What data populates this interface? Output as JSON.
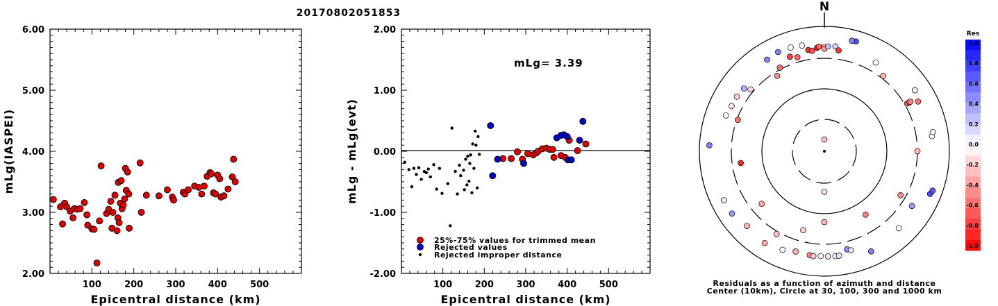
{
  "chart_data": [
    {
      "type": "scatter",
      "title": "20170802051853",
      "xlabel": "Epicentral distance (km)",
      "ylabel": "mLg(IASPEI)",
      "xlim": [
        0,
        600
      ],
      "ylim": [
        2.0,
        6.0
      ],
      "xticks": [
        "100",
        "200",
        "300",
        "400",
        "500"
      ],
      "yticks": [
        "2.00",
        "3.00",
        "4.00",
        "5.00",
        "6.00"
      ],
      "series": [
        {
          "color": "#dd0000",
          "points": [
            [
              8,
              3.21
            ],
            [
              25,
              3.09
            ],
            [
              30,
              2.81
            ],
            [
              35,
              3.15
            ],
            [
              40,
              3.09
            ],
            [
              48,
              3.02
            ],
            [
              55,
              2.91
            ],
            [
              58,
              3.06
            ],
            [
              65,
              3.05
            ],
            [
              72,
              3.06
            ],
            [
              82,
              3.16
            ],
            [
              88,
              2.96
            ],
            [
              90,
              2.79
            ],
            [
              100,
              2.73
            ],
            [
              105,
              2.72
            ],
            [
              112,
              2.17
            ],
            [
              118,
              2.86
            ],
            [
              122,
              3.76
            ],
            [
              135,
              2.98
            ],
            [
              140,
              3.05
            ],
            [
              145,
              3.18
            ],
            [
              148,
              2.74
            ],
            [
              150,
              3.0
            ],
            [
              155,
              3.28
            ],
            [
              160,
              2.7
            ],
            [
              162,
              2.91
            ],
            [
              163,
              3.49
            ],
            [
              165,
              2.83
            ],
            [
              168,
              3.15
            ],
            [
              170,
              3.52
            ],
            [
              172,
              3.06
            ],
            [
              175,
              3.12
            ],
            [
              178,
              3.22
            ],
            [
              180,
              3.72
            ],
            [
              182,
              3.36
            ],
            [
              185,
              3.66
            ],
            [
              188,
              3.3
            ],
            [
              189,
              2.74
            ],
            [
              215,
              3.81
            ],
            [
              218,
              3.0
            ],
            [
              230,
              3.28
            ],
            [
              260,
              3.27
            ],
            [
              280,
              3.37
            ],
            [
              292,
              3.25
            ],
            [
              295,
              3.2
            ],
            [
              318,
              3.33
            ],
            [
              322,
              3.3
            ],
            [
              330,
              3.37
            ],
            [
              345,
              3.43
            ],
            [
              355,
              3.41
            ],
            [
              362,
              3.3
            ],
            [
              368,
              3.43
            ],
            [
              375,
              3.59
            ],
            [
              382,
              3.65
            ],
            [
              385,
              3.63
            ],
            [
              390,
              3.32
            ],
            [
              395,
              3.3
            ],
            [
              400,
              3.61
            ],
            [
              405,
              3.55
            ],
            [
              408,
              3.25
            ],
            [
              415,
              3.27
            ],
            [
              425,
              3.38
            ],
            [
              435,
              3.58
            ],
            [
              438,
              3.87
            ],
            [
              442,
              3.5
            ]
          ]
        }
      ]
    },
    {
      "type": "scatter",
      "xlabel": "Epicentral distance (km)",
      "ylabel": "mLg - mLg(evt)",
      "xlim": [
        0,
        600
      ],
      "ylim": [
        -2.0,
        2.0
      ],
      "xticks": [
        "100",
        "200",
        "300",
        "400",
        "500"
      ],
      "yticks": [
        "-2.00",
        "-1.00",
        "0.00",
        "1.00",
        "2.00"
      ],
      "annotation": "mLg= 3.39",
      "series": [
        {
          "name": "25%-75% values for trimmed mean",
          "color": "#dd0000",
          "marker": "circle",
          "points": [
            [
              245,
              -0.12
            ],
            [
              265,
              -0.12
            ],
            [
              280,
              -0.01
            ],
            [
              292,
              -0.13
            ],
            [
              305,
              -0.04
            ],
            [
              318,
              -0.06
            ],
            [
              325,
              -0.03
            ],
            [
              330,
              0.0
            ],
            [
              340,
              0.04
            ],
            [
              350,
              0.05
            ],
            [
              358,
              0.03
            ],
            [
              365,
              0.03
            ],
            [
              368,
              -0.1
            ],
            [
              385,
              -0.07
            ],
            [
              395,
              -0.1
            ],
            [
              405,
              0.18
            ],
            [
              425,
              0.01
            ],
            [
              445,
              0.12
            ]
          ]
        },
        {
          "name": "Rejected values",
          "color": "#0000cc",
          "marker": "circle",
          "points": [
            [
              215,
              0.42
            ],
            [
              220,
              -0.4
            ],
            [
              232,
              -0.13
            ],
            [
              295,
              -0.2
            ],
            [
              375,
              0.22
            ],
            [
              385,
              0.26
            ],
            [
              392,
              0.27
            ],
            [
              400,
              0.24
            ],
            [
              402,
              -0.14
            ],
            [
              410,
              -0.14
            ],
            [
              430,
              0.18
            ],
            [
              438,
              0.49
            ]
          ]
        },
        {
          "name": "Rejected improper distance",
          "color": "#000000",
          "marker": "dot",
          "points": [
            [
              8,
              -0.18
            ],
            [
              18,
              -0.3
            ],
            [
              25,
              -0.58
            ],
            [
              30,
              -0.28
            ],
            [
              36,
              -0.38
            ],
            [
              42,
              -0.27
            ],
            [
              48,
              -0.46
            ],
            [
              55,
              -0.33
            ],
            [
              60,
              -0.35
            ],
            [
              65,
              -0.29
            ],
            [
              70,
              -0.42
            ],
            [
              78,
              -0.22
            ],
            [
              85,
              -0.62
            ],
            [
              92,
              -0.28
            ],
            [
              98,
              -0.69
            ],
            [
              112,
              -0.53
            ],
            [
              118,
              -1.22
            ],
            [
              122,
              0.38
            ],
            [
              130,
              -0.33
            ],
            [
              135,
              -0.7
            ],
            [
              140,
              -0.23
            ],
            [
              143,
              -0.4
            ],
            [
              150,
              -0.31
            ],
            [
              152,
              -0.63
            ],
            [
              155,
              -0.13
            ],
            [
              158,
              -0.55
            ],
            [
              160,
              -0.08
            ],
            [
              163,
              -0.49
            ],
            [
              165,
              -0.2
            ],
            [
              167,
              -0.06
            ],
            [
              170,
              -0.68
            ],
            [
              172,
              0.12
            ],
            [
              175,
              -0.28
            ],
            [
              178,
              0.33
            ],
            [
              180,
              0.1
            ],
            [
              183,
              -0.6
            ],
            [
              185,
              0.24
            ],
            [
              188,
              -0.05
            ]
          ]
        }
      ]
    },
    {
      "type": "polar",
      "north_label": "N",
      "caption_line1": "Residuals as a function of azimuth and distance",
      "caption_line2": "Center (10km), Circle at 30, 100, 300 and 1000 km",
      "circles_km": [
        30,
        100,
        300,
        1000
      ],
      "stations": [
        {
          "az": 0,
          "dist": 15,
          "res": -0.25
        },
        {
          "az": 180,
          "dist": 42,
          "res": -0.15
        },
        {
          "az": 90,
          "dist": 300,
          "res": -0.3
        },
        {
          "az": 38,
          "dist": 330,
          "res": -0.3
        },
        {
          "az": 60,
          "dist": 330,
          "res": -0.65
        },
        {
          "az": 60,
          "dist": 365,
          "res": -0.4
        },
        {
          "az": 60,
          "dist": 380,
          "res": -0.5
        },
        {
          "az": 120,
          "dist": 250,
          "res": -0.45
        },
        {
          "az": 147,
          "dist": 160,
          "res": -0.5
        },
        {
          "az": 180,
          "dist": 135,
          "res": -0.3
        },
        {
          "az": 195,
          "dist": 200,
          "res": -0.2
        },
        {
          "az": 210,
          "dist": 330,
          "res": -0.25
        },
        {
          "az": 230,
          "dist": 200,
          "res": -0.35
        },
        {
          "az": 262,
          "dist": 220,
          "res": -0.85
        },
        {
          "az": 290,
          "dist": 290,
          "res": -0.55
        },
        {
          "az": 310,
          "dist": 340,
          "res": -0.15
        },
        {
          "az": 328,
          "dist": 260,
          "res": -0.45
        },
        {
          "az": 332,
          "dist": 320,
          "res": -0.55
        },
        {
          "az": 340,
          "dist": 400,
          "res": -0.75
        },
        {
          "az": 344,
          "dist": 360,
          "res": -0.6
        },
        {
          "az": 351,
          "dist": 430,
          "res": -0.8
        },
        {
          "az": 353,
          "dist": 410,
          "res": -0.7
        },
        {
          "az": 356,
          "dist": 450,
          "res": -0.9
        },
        {
          "az": 357,
          "dist": 470,
          "res": -0.6
        },
        {
          "az": 0,
          "dist": 460,
          "res": -0.3
        },
        {
          "az": 0,
          "dist": 430,
          "res": -0.4
        },
        {
          "az": 2,
          "dist": 470,
          "res": 0.25
        },
        {
          "az": 6,
          "dist": 480,
          "res": 0.2
        },
        {
          "az": 8,
          "dist": 420,
          "res": -0.8
        },
        {
          "az": 348,
          "dist": 530,
          "res": 0.0
        },
        {
          "az": 335,
          "dist": 560,
          "res": 0.5
        },
        {
          "az": 308,
          "dist": 420,
          "res": 0.3
        },
        {
          "az": 302,
          "dist": 440,
          "res": -0.2
        },
        {
          "az": 296,
          "dist": 440,
          "res": -0.1
        },
        {
          "az": 290,
          "dist": 465,
          "res": 0.0
        },
        {
          "az": 273,
          "dist": 690,
          "res": 0.5
        },
        {
          "az": 244,
          "dist": 610,
          "res": -0.1
        },
        {
          "az": 236,
          "dist": 600,
          "res": 0.4
        },
        {
          "az": 226,
          "dist": 520,
          "res": -0.3
        },
        {
          "az": 213,
          "dist": 560,
          "res": -0.35
        },
        {
          "az": 203,
          "dist": 510,
          "res": 0.0
        },
        {
          "az": 196,
          "dist": 460,
          "res": -0.3
        },
        {
          "az": 188,
          "dist": 470,
          "res": -0.5
        },
        {
          "az": 186,
          "dist": 480,
          "res": -0.2
        },
        {
          "az": 182,
          "dist": 470,
          "res": 0.0
        },
        {
          "az": 178,
          "dist": 475,
          "res": -0.1
        },
        {
          "az": 174,
          "dist": 480,
          "res": 0.05
        },
        {
          "az": 172,
          "dist": 480,
          "res": 0.1
        },
        {
          "az": 167,
          "dist": 400,
          "res": 0.45
        },
        {
          "az": 165,
          "dist": 430,
          "res": 0.1
        },
        {
          "az": 155,
          "dist": 580,
          "res": 0.5
        },
        {
          "az": 136,
          "dist": 510,
          "res": 0.0
        },
        {
          "az": 122,
          "dist": 440,
          "res": 0.4
        },
        {
          "az": 112,
          "dist": 660,
          "res": 0.7
        },
        {
          "az": 110,
          "dist": 690,
          "res": 0.65
        },
        {
          "az": 82,
          "dist": 540,
          "res": 0.0
        },
        {
          "az": 80,
          "dist": 570,
          "res": 0.05
        },
        {
          "az": 62,
          "dist": 490,
          "res": -0.55
        },
        {
          "az": 56,
          "dist": 550,
          "res": 0.1
        },
        {
          "az": 30,
          "dist": 430,
          "res": 0.0
        },
        {
          "az": 16,
          "dist": 670,
          "res": 0.7
        },
        {
          "az": 14,
          "dist": 660,
          "res": 0.5
        },
        {
          "az": 342,
          "dist": 550,
          "res": 0.0
        },
        {
          "az": 328,
          "dist": 530,
          "res": 0.5
        }
      ]
    }
  ],
  "colorbar": {
    "title": "Res",
    "labels": [
      "1.0",
      "0.8",
      "0.6",
      "0.4",
      "0.2",
      "0.0",
      "-0.2",
      "-0.4",
      "-0.6",
      "-0.8",
      "-1.0"
    ],
    "pos_color": "#0000ff",
    "neg_color": "#ff0000"
  }
}
